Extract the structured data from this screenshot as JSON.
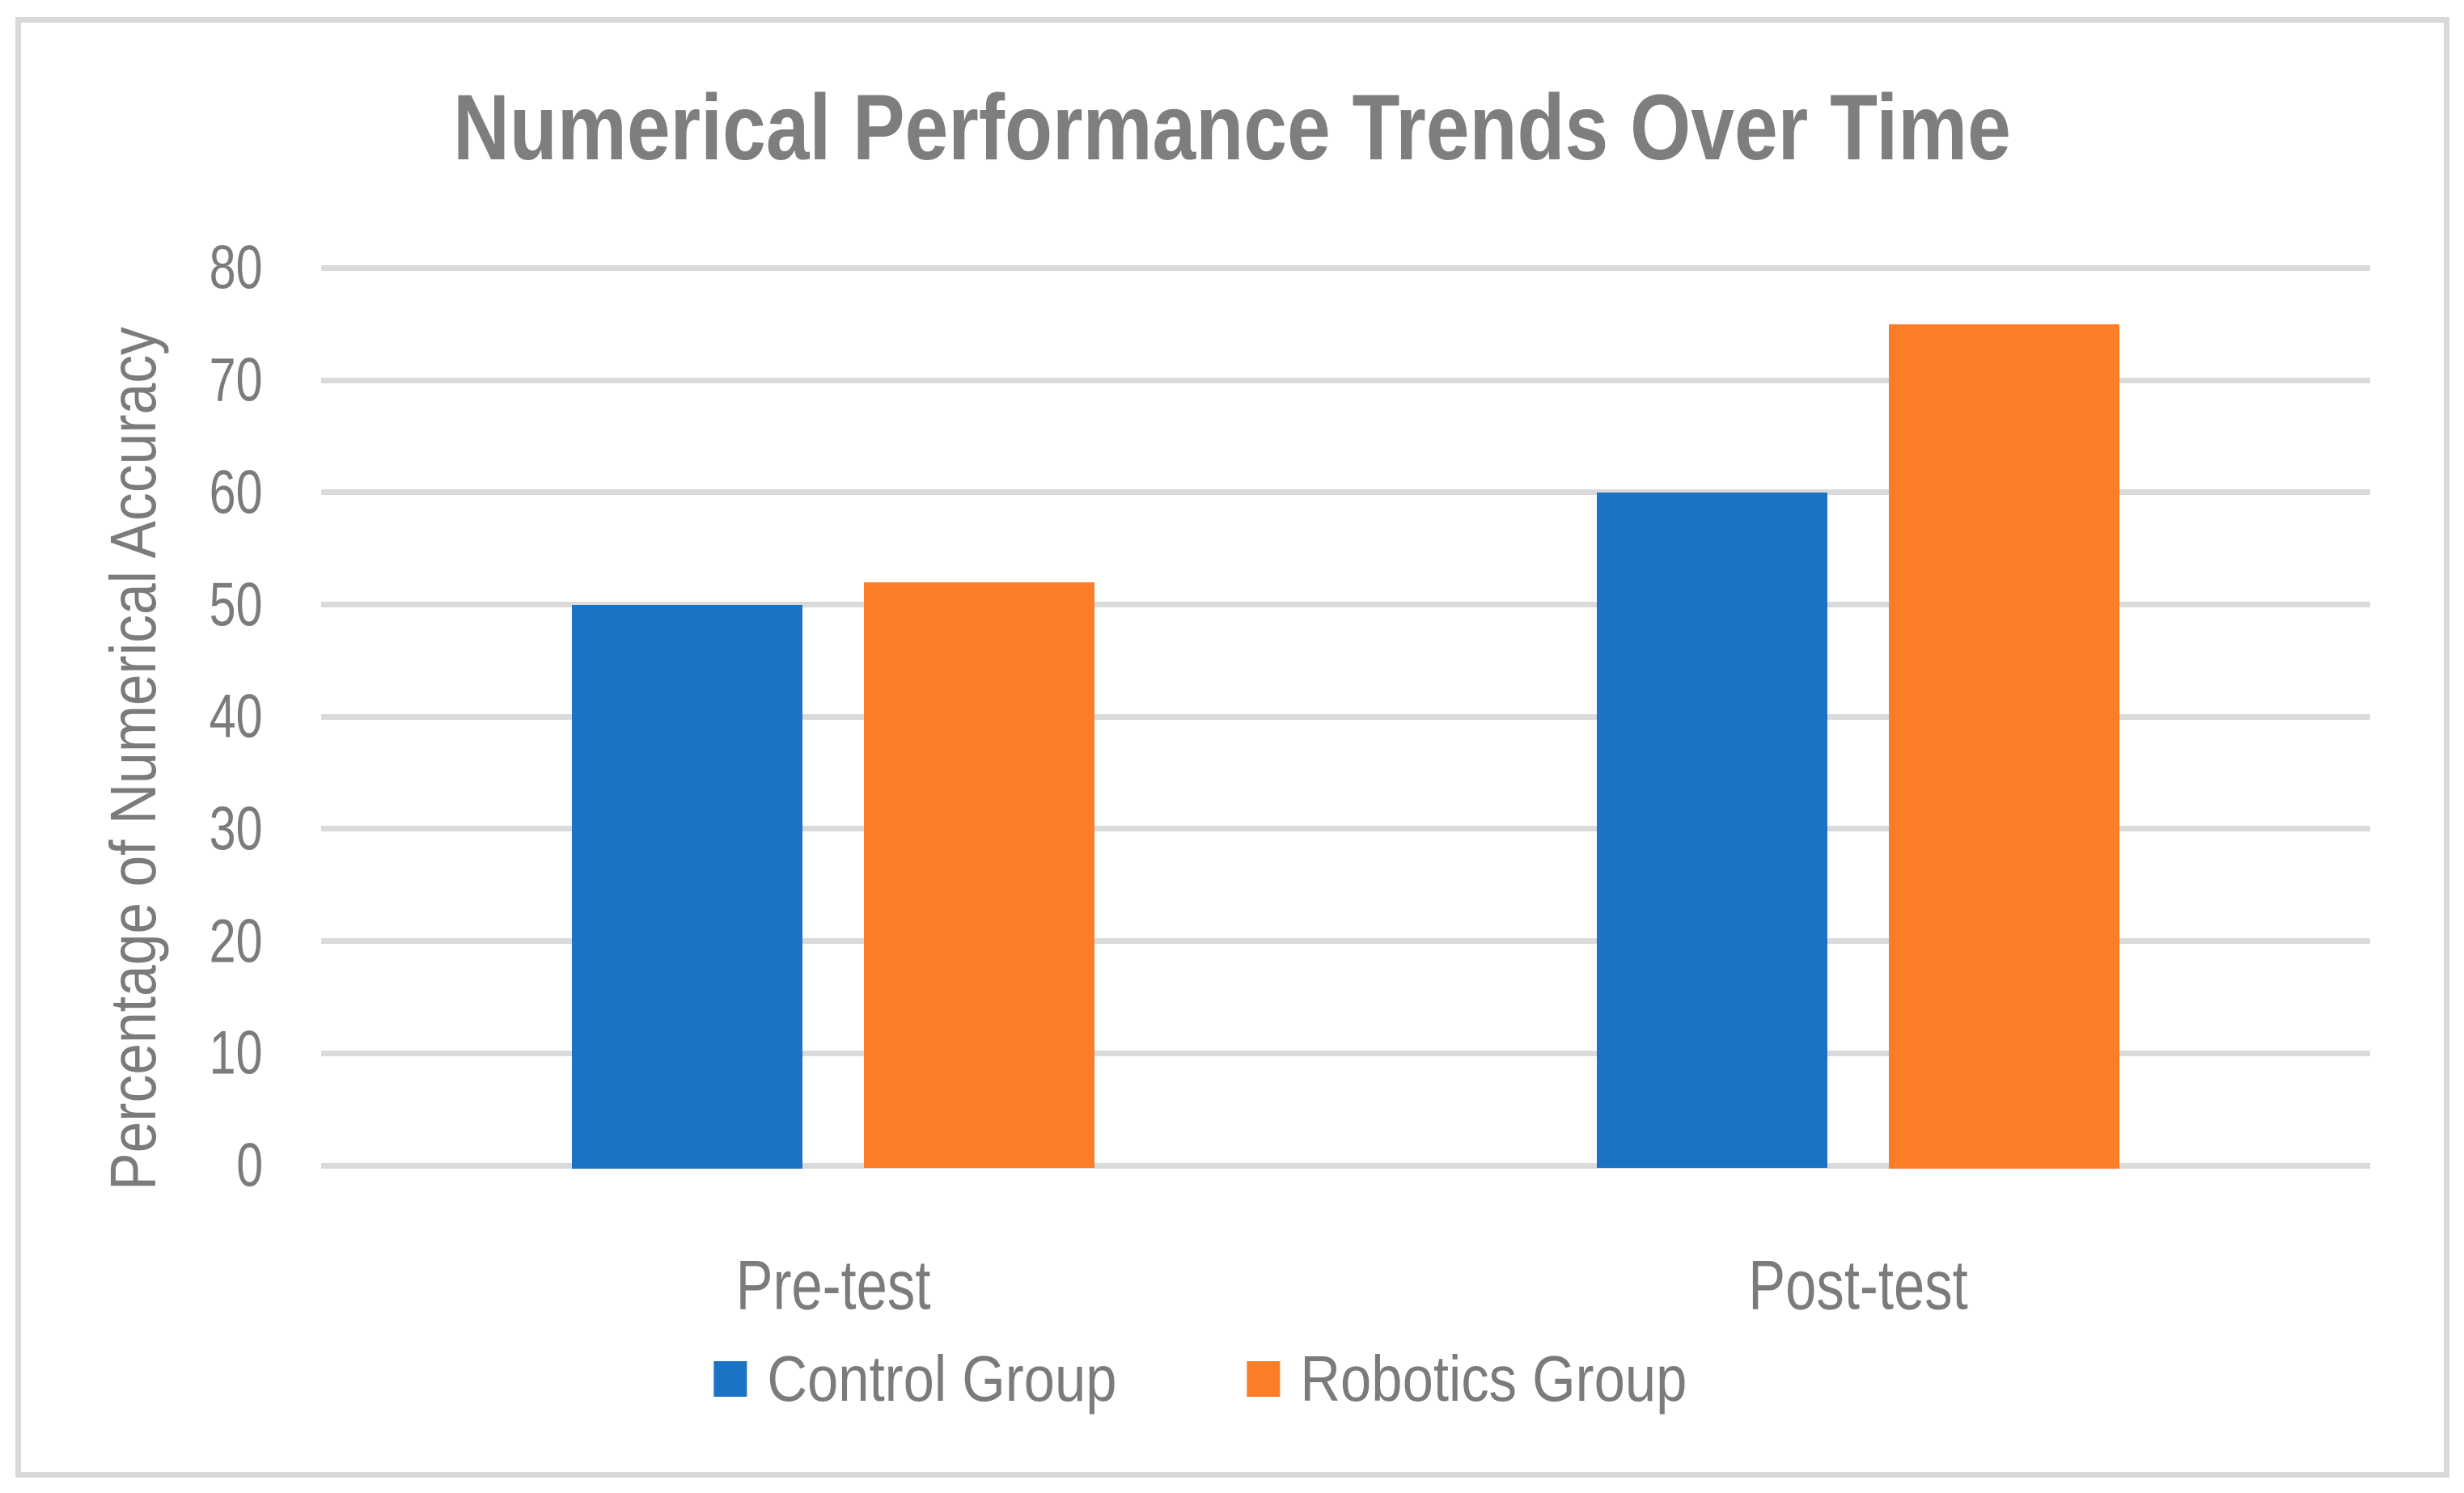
{
  "frame": {
    "border_color": "#D9D9D9",
    "background_color": "#FFFFFF"
  },
  "chart_data": {
    "type": "bar",
    "title": "Numerical Performance Trends Over Time",
    "categories": [
      "Pre-test",
      "Post-test"
    ],
    "series": [
      {
        "name": "Control Group",
        "color": "#1B73C6",
        "values": [
          50,
          60
        ]
      },
      {
        "name": "Robotics Group",
        "color": "#FC7D28",
        "values": [
          52,
          75
        ]
      }
    ],
    "xlabel": "",
    "ylabel": "Percentage of Numerical Accuracy",
    "ylim": [
      0,
      80
    ],
    "yticks": [
      0,
      10,
      20,
      30,
      40,
      50,
      60,
      70,
      80
    ],
    "grid": "horizontal",
    "gridline_color": "#DADADA",
    "legend_position": "bottom",
    "legend_entries": [
      "Control Group",
      "Robotics Group"
    ],
    "title_color": "#7E7E7E",
    "text_color": "#7B7B7B"
  }
}
